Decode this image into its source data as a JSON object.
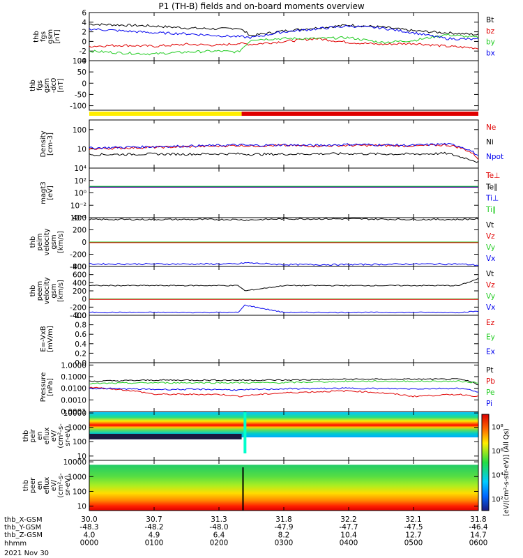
{
  "title": "P1 (TH-B) fields and on-board moments overview",
  "date": "2021 Nov 30",
  "colors": {
    "black": "#000000",
    "red": "#e00000",
    "green": "#22cc22",
    "blue": "#0000ee",
    "yellow": "#ffee00"
  },
  "panels": [
    {
      "id": "fgs-gsm",
      "ylabel": [
        "thb",
        "fgs",
        "gsm",
        "[nT]"
      ],
      "ylim": [
        -4,
        6
      ],
      "ticks": [
        "6",
        "4",
        "2",
        "0",
        "-2",
        "-4"
      ],
      "tick_values": [
        6,
        4,
        2,
        0,
        -2,
        -4
      ],
      "legend": [
        {
          "text": "Bt",
          "color": "black"
        },
        {
          "text": "bz",
          "color": "red"
        },
        {
          "text": "by",
          "color": "green"
        },
        {
          "text": "bx",
          "color": "blue"
        }
      ]
    },
    {
      "id": "fgs-gsm-dc",
      "ylabel": [
        "thb",
        "fgs",
        "gsm",
        "-dc0",
        "[nT]"
      ],
      "ylim": [
        -120,
        100
      ],
      "ticks": [
        "100",
        "50",
        "0",
        "-50",
        "-100"
      ],
      "tick_values": [
        100,
        50,
        0,
        -50,
        -100
      ],
      "legend": []
    },
    {
      "id": "density",
      "ylabel": [
        "Density",
        "[cm-3]"
      ],
      "log": true,
      "ylim_log": [
        0,
        2.5
      ],
      "ticks": [
        "100",
        "10"
      ],
      "tick_values": [
        2,
        1
      ],
      "legend": [
        {
          "text": "Ne",
          "color": "red"
        },
        {
          "text": "Ni",
          "color": "black"
        },
        {
          "text": "Npot",
          "color": "blue"
        }
      ]
    },
    {
      "id": "temperature",
      "ylabel": [
        "magt3",
        "[eV]"
      ],
      "log": true,
      "ylim_log": [
        -4,
        4
      ],
      "ticks": [
        "10⁴",
        "10²",
        "10⁰",
        "10⁻²",
        "10⁻⁴"
      ],
      "tick_values": [
        4,
        2,
        0,
        -2,
        -4
      ],
      "legend": [
        {
          "text": "Te⊥",
          "color": "red"
        },
        {
          "text": "Te∥",
          "color": "black"
        },
        {
          "text": "Ti⊥",
          "color": "blue"
        },
        {
          "text": "Ti∥",
          "color": "green"
        }
      ]
    },
    {
      "id": "peim-velocity",
      "ylabel": [
        "thb",
        "peim",
        "velocity",
        "gsm",
        "[km/s]"
      ],
      "ylim": [
        -400,
        400
      ],
      "ticks": [
        "400",
        "200",
        "0",
        "-200",
        "-400"
      ],
      "tick_values": [
        400,
        200,
        0,
        -200,
        -400
      ],
      "legend": [
        {
          "text": "Vt",
          "color": "black"
        },
        {
          "text": "Vz",
          "color": "red"
        },
        {
          "text": "Vy",
          "color": "green"
        },
        {
          "text": "Vx",
          "color": "blue"
        }
      ]
    },
    {
      "id": "peem-velocity",
      "ylabel": [
        "thb",
        "peem",
        "velocity",
        "gsm",
        "[km/s]"
      ],
      "ylim": [
        -400,
        800
      ],
      "ticks": [
        "800",
        "600",
        "400",
        "200",
        "0",
        "-200",
        "-400"
      ],
      "tick_values": [
        800,
        600,
        400,
        200,
        0,
        -200,
        -400
      ],
      "legend": [
        {
          "text": "Vt",
          "color": "black"
        },
        {
          "text": "Vz",
          "color": "red"
        },
        {
          "text": "Vy",
          "color": "green"
        },
        {
          "text": "Vx",
          "color": "blue"
        }
      ]
    },
    {
      "id": "efield",
      "ylabel": [
        "E=-VxB",
        "[mV/m]"
      ],
      "ylim": [
        0,
        1
      ],
      "ticks": [
        "1.0",
        "0.8",
        "0.6",
        "0.4",
        "0.2",
        "0.0"
      ],
      "tick_values": [
        1,
        0.8,
        0.6,
        0.4,
        0.2,
        0
      ],
      "legend": [
        {
          "text": "Ez",
          "color": "red"
        },
        {
          "text": "Ey",
          "color": "green"
        },
        {
          "text": "Ex",
          "color": "blue"
        }
      ]
    },
    {
      "id": "pressure",
      "ylabel": [
        "Pressure",
        "[nPa]"
      ],
      "log": true,
      "ylim_log": [
        -4,
        0.2
      ],
      "ticks": [
        "1.0000",
        "0.1000",
        "0.0100",
        "0.0010",
        "0.0001"
      ],
      "tick_values": [
        0,
        -1,
        -2,
        -3,
        -4
      ],
      "legend": [
        {
          "text": "Pt",
          "color": "black"
        },
        {
          "text": "Pb",
          "color": "red"
        },
        {
          "text": "Pe",
          "color": "green"
        },
        {
          "text": "Pi",
          "color": "blue"
        }
      ]
    },
    {
      "id": "peir-eflux",
      "ylabel": [
        "thb",
        "peir",
        "en",
        "eflux",
        "eV/",
        "(cm²-s-",
        "sr-eV)"
      ],
      "log": true,
      "ylim_log": [
        0.7,
        4.1
      ],
      "ticks": [
        "10000",
        "1000",
        "100",
        "10"
      ],
      "tick_values": [
        4,
        3,
        2,
        1
      ],
      "legend": []
    },
    {
      "id": "peer-eflux",
      "ylabel": [
        "thb",
        "peer",
        "en",
        "eflux",
        "eV/",
        "(cm²-s-",
        "sr-eV)"
      ],
      "log": true,
      "ylim_log": [
        0.7,
        4.1
      ],
      "ticks": [
        "10000",
        "1000",
        "100",
        "10"
      ],
      "tick_values": [
        4,
        3,
        2,
        1
      ],
      "legend": []
    }
  ],
  "colorbar": {
    "label": "[eV/(cm²-s-str-eV)]  (All Qs)",
    "ticks": [
      "10⁸",
      "10⁶",
      "10⁴",
      "10²"
    ],
    "tick_values": [
      8,
      6,
      4,
      2
    ]
  },
  "orbit": {
    "labels": [
      "thb_X-GSM",
      "thb_Y-GSM",
      "thb_Z-GSM",
      "hhmm"
    ],
    "columns": [
      [
        "30.0",
        "-48.3",
        "4.0",
        "0000"
      ],
      [
        "30.7",
        "-48.2",
        "4.9",
        "0100"
      ],
      [
        "31.3",
        "-48.0",
        "6.4",
        "0200"
      ],
      [
        "31.8",
        "-47.9",
        "8.2",
        "0300"
      ],
      [
        "32.2",
        "-47.7",
        "10.4",
        "0400"
      ],
      [
        "32.1",
        "-47.5",
        "12.7",
        "0500"
      ],
      [
        "31.8",
        "-46.4",
        "14.7",
        "0600"
      ]
    ]
  },
  "chart_data": {
    "type": "line",
    "title": "P1 (TH-B) fields and on-board moments overview",
    "x_hours": [
      0,
      1,
      2,
      3,
      4,
      5,
      6
    ],
    "xlim": [
      0,
      6
    ],
    "grid": false,
    "series": [
      {
        "name": "Bt",
        "panel": "fgs-gsm",
        "x": [
          0,
          0.5,
          1,
          1.5,
          2,
          2.3,
          2.5,
          3,
          3.5,
          4,
          4.5,
          5,
          5.5,
          6
        ],
        "values": [
          3.6,
          3.4,
          3.2,
          2.8,
          2.6,
          2.8,
          1.2,
          2.2,
          2.8,
          3.4,
          3.0,
          2.2,
          1.8,
          1.4
        ]
      },
      {
        "name": "bz",
        "panel": "fgs-gsm",
        "x": [
          0,
          0.5,
          1,
          1.5,
          2,
          2.3,
          2.5,
          3,
          3.5,
          4,
          4.5,
          5,
          5.5,
          6
        ],
        "values": [
          -1.0,
          -0.8,
          -1.0,
          -0.6,
          -0.8,
          -0.4,
          -0.6,
          0.0,
          0.6,
          -0.2,
          -0.6,
          -0.4,
          -1.0,
          -1.4
        ]
      },
      {
        "name": "by",
        "panel": "fgs-gsm",
        "x": [
          0,
          0.5,
          1,
          1.5,
          2,
          2.3,
          2.5,
          3,
          3.5,
          4,
          4.5,
          5,
          5.5,
          6
        ],
        "values": [
          -2.0,
          -2.4,
          -2.6,
          -2.2,
          -2.0,
          -2.2,
          0.4,
          0.6,
          0.6,
          0.8,
          -0.2,
          0.2,
          1.4,
          0.8
        ]
      },
      {
        "name": "bx",
        "panel": "fgs-gsm",
        "x": [
          0,
          0.5,
          1,
          1.5,
          2,
          2.3,
          2.5,
          3,
          3.5,
          4,
          4.5,
          5,
          5.5,
          6
        ],
        "values": [
          2.6,
          2.2,
          1.8,
          1.6,
          1.2,
          1.0,
          0.8,
          2.0,
          2.6,
          3.2,
          2.8,
          1.8,
          0.6,
          0.4
        ]
      },
      {
        "name": "Ne",
        "panel": "density",
        "x": [
          0,
          0.5,
          1,
          1.5,
          2,
          2.3,
          2.5,
          3,
          3.5,
          4,
          4.5,
          5,
          5.5,
          5.7,
          6
        ],
        "values": [
          10,
          11,
          12,
          13,
          14,
          15,
          14,
          15,
          14,
          15,
          15,
          14,
          16,
          12,
          3
        ]
      },
      {
        "name": "Ni",
        "panel": "density",
        "x": [
          0,
          0.5,
          1,
          1.5,
          2,
          2.3,
          2.5,
          3,
          3.5,
          4,
          4.5,
          5,
          5.5,
          5.7,
          6
        ],
        "values": [
          5,
          5.2,
          5.4,
          5.3,
          5.5,
          5.5,
          5.2,
          5.3,
          5.5,
          5.6,
          5.4,
          5.3,
          5.8,
          4,
          2
        ]
      },
      {
        "name": "Npot",
        "panel": "density",
        "x": [
          0,
          0.5,
          1,
          1.5,
          2,
          2.3,
          2.5,
          3,
          3.5,
          4,
          4.5,
          5,
          5.5,
          5.7,
          6
        ],
        "values": [
          11,
          12,
          13,
          14,
          15,
          16,
          15,
          16,
          15,
          17,
          16,
          15,
          18,
          14,
          4
        ]
      },
      {
        "name": "Vt (peim)",
        "panel": "peim-velocity",
        "x": [
          0,
          2.3,
          2.4,
          3,
          4,
          5,
          5.7,
          6
        ],
        "values": [
          370,
          370,
          360,
          380,
          380,
          370,
          370,
          380
        ]
      },
      {
        "name": "Vx (peim)",
        "panel": "peim-velocity",
        "x": [
          0,
          2.3,
          2.4,
          3,
          4,
          5,
          5.7,
          6
        ],
        "values": [
          -360,
          -360,
          -340,
          -370,
          -370,
          -360,
          -360,
          -380
        ]
      },
      {
        "name": "Vt (peem)",
        "panel": "peem-velocity",
        "x": [
          0,
          2.3,
          2.4,
          3,
          4,
          5,
          5.7,
          6
        ],
        "values": [
          330,
          330,
          200,
          330,
          330,
          330,
          330,
          500
        ]
      },
      {
        "name": "Vx (peem)",
        "panel": "peem-velocity",
        "x": [
          0,
          2.3,
          2.4,
          3,
          4,
          5,
          5.7,
          6
        ],
        "values": [
          -330,
          -330,
          -150,
          -330,
          -330,
          -330,
          -330,
          -300
        ]
      },
      {
        "name": "Pt",
        "panel": "pressure",
        "x": [
          0,
          1,
          2,
          2.3,
          3,
          4,
          5,
          5.7,
          6
        ],
        "values": [
          0.04,
          0.05,
          0.05,
          0.05,
          0.05,
          0.06,
          0.06,
          0.06,
          0.02
        ]
      },
      {
        "name": "Pb",
        "panel": "pressure",
        "x": [
          0,
          1,
          2,
          2.3,
          3,
          4,
          5,
          5.7,
          6
        ],
        "values": [
          0.012,
          0.003,
          0.003,
          0.002,
          0.004,
          0.006,
          0.002,
          0.003,
          0.002
        ]
      },
      {
        "name": "Pe",
        "panel": "pressure",
        "x": [
          0,
          1,
          2,
          2.3,
          3,
          4,
          5,
          5.7,
          6
        ],
        "values": [
          0.025,
          0.03,
          0.03,
          0.03,
          0.03,
          0.04,
          0.04,
          0.04,
          0.03
        ]
      },
      {
        "name": "Pi",
        "panel": "pressure",
        "x": [
          0,
          1,
          2,
          2.3,
          3,
          4,
          5,
          5.7,
          6
        ],
        "values": [
          0.01,
          0.008,
          0.008,
          0.007,
          0.009,
          0.01,
          0.009,
          0.01,
          0.005
        ]
      }
    ]
  }
}
